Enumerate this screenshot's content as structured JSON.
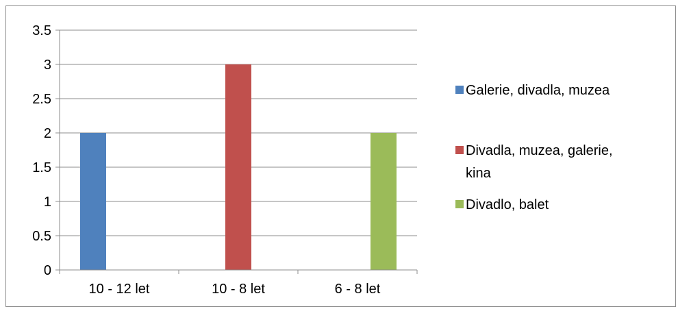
{
  "chart_data": {
    "type": "bar",
    "categories": [
      "10 - 12 let",
      "10 - 8 let",
      "6 - 8 let"
    ],
    "series": [
      {
        "name": "Galerie, divadla, muzea",
        "color": "#4f81bd",
        "values": [
          2,
          0,
          0
        ]
      },
      {
        "name": "Divadla, muzea, galerie, kina",
        "color": "#c0504d",
        "values": [
          0,
          3,
          0
        ]
      },
      {
        "name": "Divadlo, balet",
        "color": "#9bbb59",
        "values": [
          0,
          0,
          2
        ]
      }
    ],
    "ylim": [
      0,
      3.5
    ],
    "yticks": [
      "0",
      "0.5",
      "1",
      "1.5",
      "2",
      "2.5",
      "3",
      "3.5"
    ],
    "grid": true,
    "legend_position": "right"
  }
}
